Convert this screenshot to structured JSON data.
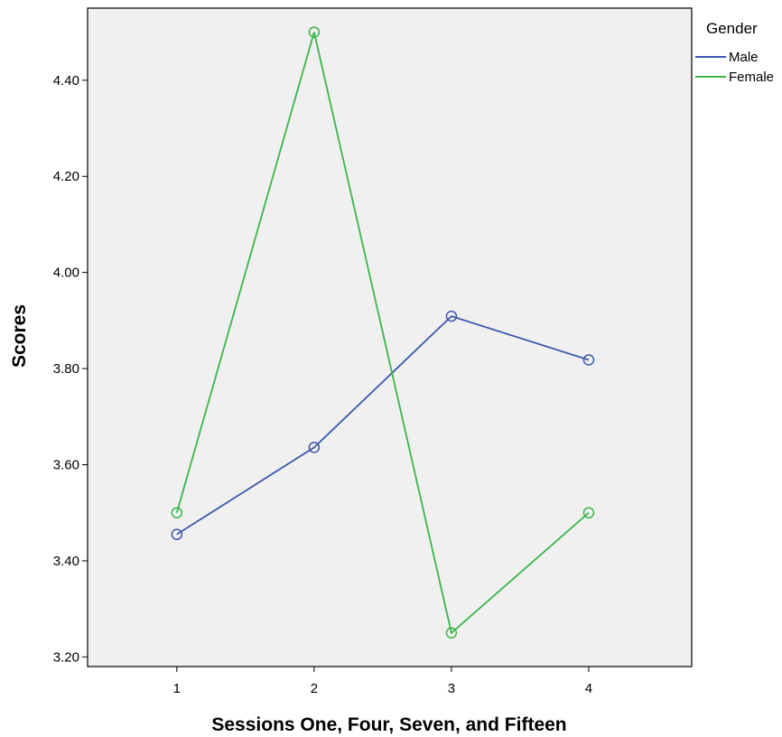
{
  "chart_data": {
    "type": "line",
    "title": "",
    "xlabel": "Sessions One, Four, Seven, and Fifteen",
    "ylabel": "Scores",
    "categories": [
      "1",
      "2",
      "3",
      "4"
    ],
    "x": [
      1,
      2,
      3,
      4
    ],
    "xlim": [
      0.35,
      4.75
    ],
    "ylim": [
      3.18,
      4.55
    ],
    "yticks": [
      3.2,
      3.4,
      3.6,
      3.8,
      4.0,
      4.2,
      4.4
    ],
    "ytick_labels": [
      "3.20",
      "3.40",
      "3.60",
      "3.80",
      "4.00",
      "4.20",
      "4.40"
    ],
    "grid": false,
    "legend": {
      "title": "Gender",
      "position": "right-top"
    },
    "plot_background": "#f0f0f0",
    "series": [
      {
        "name": "Male",
        "color": "#3e58ac",
        "values": [
          3.455,
          3.636,
          3.909,
          3.818
        ],
        "marker": "open-circle"
      },
      {
        "name": "Female",
        "color": "#3ab54a",
        "values": [
          3.5,
          4.5,
          3.25,
          3.5
        ],
        "marker": "open-circle"
      }
    ]
  }
}
